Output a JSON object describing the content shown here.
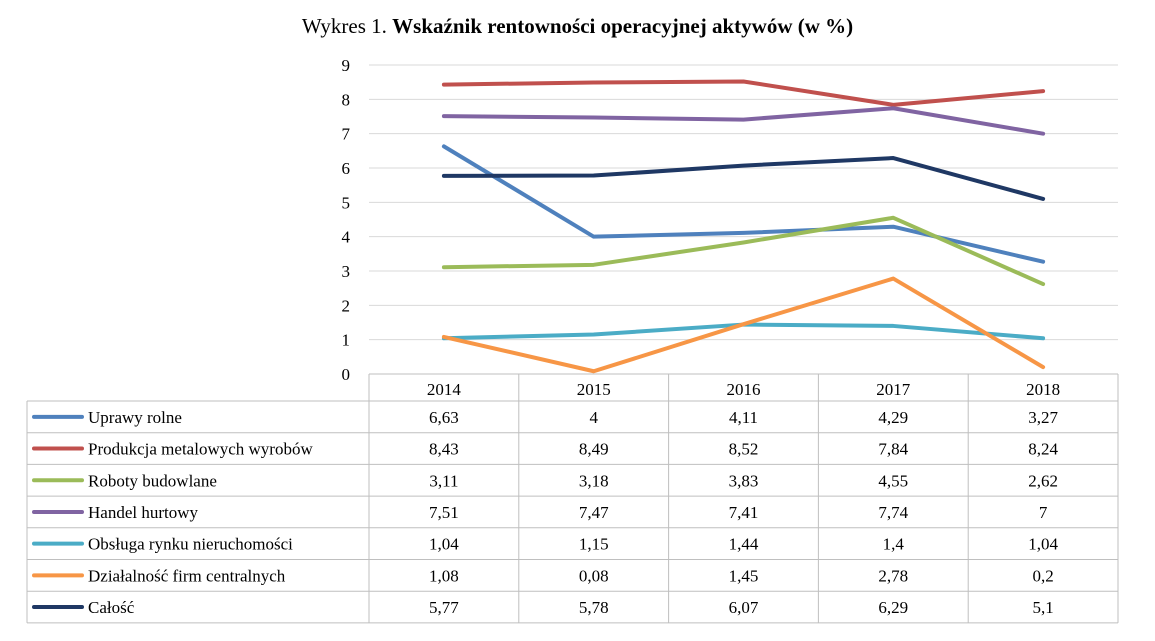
{
  "chart_data": {
    "type": "line",
    "title_prefix": "Wykres 1.",
    "title": "Wskaźnik rentowności operacyjnej aktywów (w %)",
    "categories": [
      "2014",
      "2015",
      "2016",
      "2017",
      "2018"
    ],
    "ylim": [
      0,
      9
    ],
    "yticks": [
      "0",
      "1",
      "2",
      "3",
      "4",
      "5",
      "6",
      "7",
      "8",
      "9"
    ],
    "grid": true,
    "legend_placement": "data-table",
    "series": [
      {
        "name": "Uprawy rolne",
        "color": "#4f81bd",
        "values": [
          6.63,
          4,
          4.11,
          4.29,
          3.27
        ],
        "labels": [
          "6,63",
          "4",
          "4,11",
          "4,29",
          "3,27"
        ]
      },
      {
        "name": "Produkcja metalowych wyrobów",
        "color": "#c0504d",
        "values": [
          8.43,
          8.49,
          8.52,
          7.84,
          8.24
        ],
        "labels": [
          "8,43",
          "8,49",
          "8,52",
          "7,84",
          "8,24"
        ]
      },
      {
        "name": "Roboty budowlane",
        "color": "#9bbb59",
        "values": [
          3.11,
          3.18,
          3.83,
          4.55,
          2.62
        ],
        "labels": [
          "3,11",
          "3,18",
          "3,83",
          "4,55",
          "2,62"
        ]
      },
      {
        "name": "Handel hurtowy",
        "color": "#8064a2",
        "values": [
          7.51,
          7.47,
          7.41,
          7.74,
          7
        ],
        "labels": [
          "7,51",
          "7,47",
          "7,41",
          "7,74",
          "7"
        ]
      },
      {
        "name": "Obsługa rynku nieruchomości",
        "color": "#4bacc6",
        "values": [
          1.04,
          1.15,
          1.44,
          1.4,
          1.04
        ],
        "labels": [
          "1,04",
          "1,15",
          "1,44",
          "1,4",
          "1,04"
        ]
      },
      {
        "name": "Działalność firm centralnych",
        "color": "#f79646",
        "values": [
          1.08,
          0.08,
          1.45,
          2.78,
          0.2
        ],
        "labels": [
          "1,08",
          "0,08",
          "1,45",
          "2,78",
          "0,2"
        ]
      },
      {
        "name": "Całość",
        "color": "#1f3864",
        "values": [
          5.77,
          5.78,
          6.07,
          6.29,
          5.1
        ],
        "labels": [
          "5,77",
          "5,78",
          "6,07",
          "6,29",
          "5,1"
        ]
      }
    ]
  }
}
